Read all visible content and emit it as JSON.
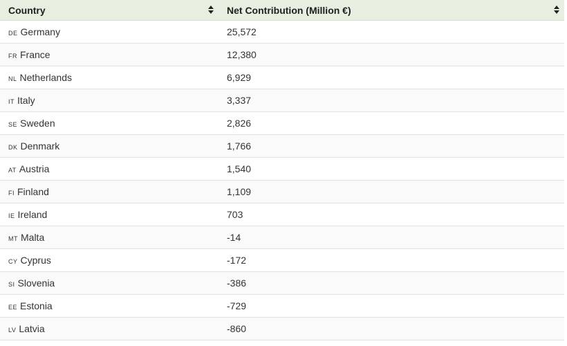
{
  "table": {
    "headers": [
      "Country",
      "Net Contribution (Million €)"
    ],
    "rows": [
      {
        "code": "DE",
        "country": "Germany",
        "value": "25,572"
      },
      {
        "code": "FR",
        "country": "France",
        "value": "12,380"
      },
      {
        "code": "NL",
        "country": "Netherlands",
        "value": "6,929"
      },
      {
        "code": "IT",
        "country": "Italy",
        "value": "3,337"
      },
      {
        "code": "SE",
        "country": "Sweden",
        "value": "2,826"
      },
      {
        "code": "DK",
        "country": "Denmark",
        "value": "1,766"
      },
      {
        "code": "AT",
        "country": "Austria",
        "value": "1,540"
      },
      {
        "code": "FI",
        "country": "Finland",
        "value": "1,109"
      },
      {
        "code": "IE",
        "country": "Ireland",
        "value": "703"
      },
      {
        "code": "MT",
        "country": "Malta",
        "value": "-14"
      },
      {
        "code": "CY",
        "country": "Cyprus",
        "value": "-172"
      },
      {
        "code": "SI",
        "country": "Slovenia",
        "value": "-386"
      },
      {
        "code": "EE",
        "country": "Estonia",
        "value": "-729"
      },
      {
        "code": "LV",
        "country": "Latvia",
        "value": "-860"
      }
    ]
  },
  "icons": {
    "sort": "sort-icon"
  }
}
